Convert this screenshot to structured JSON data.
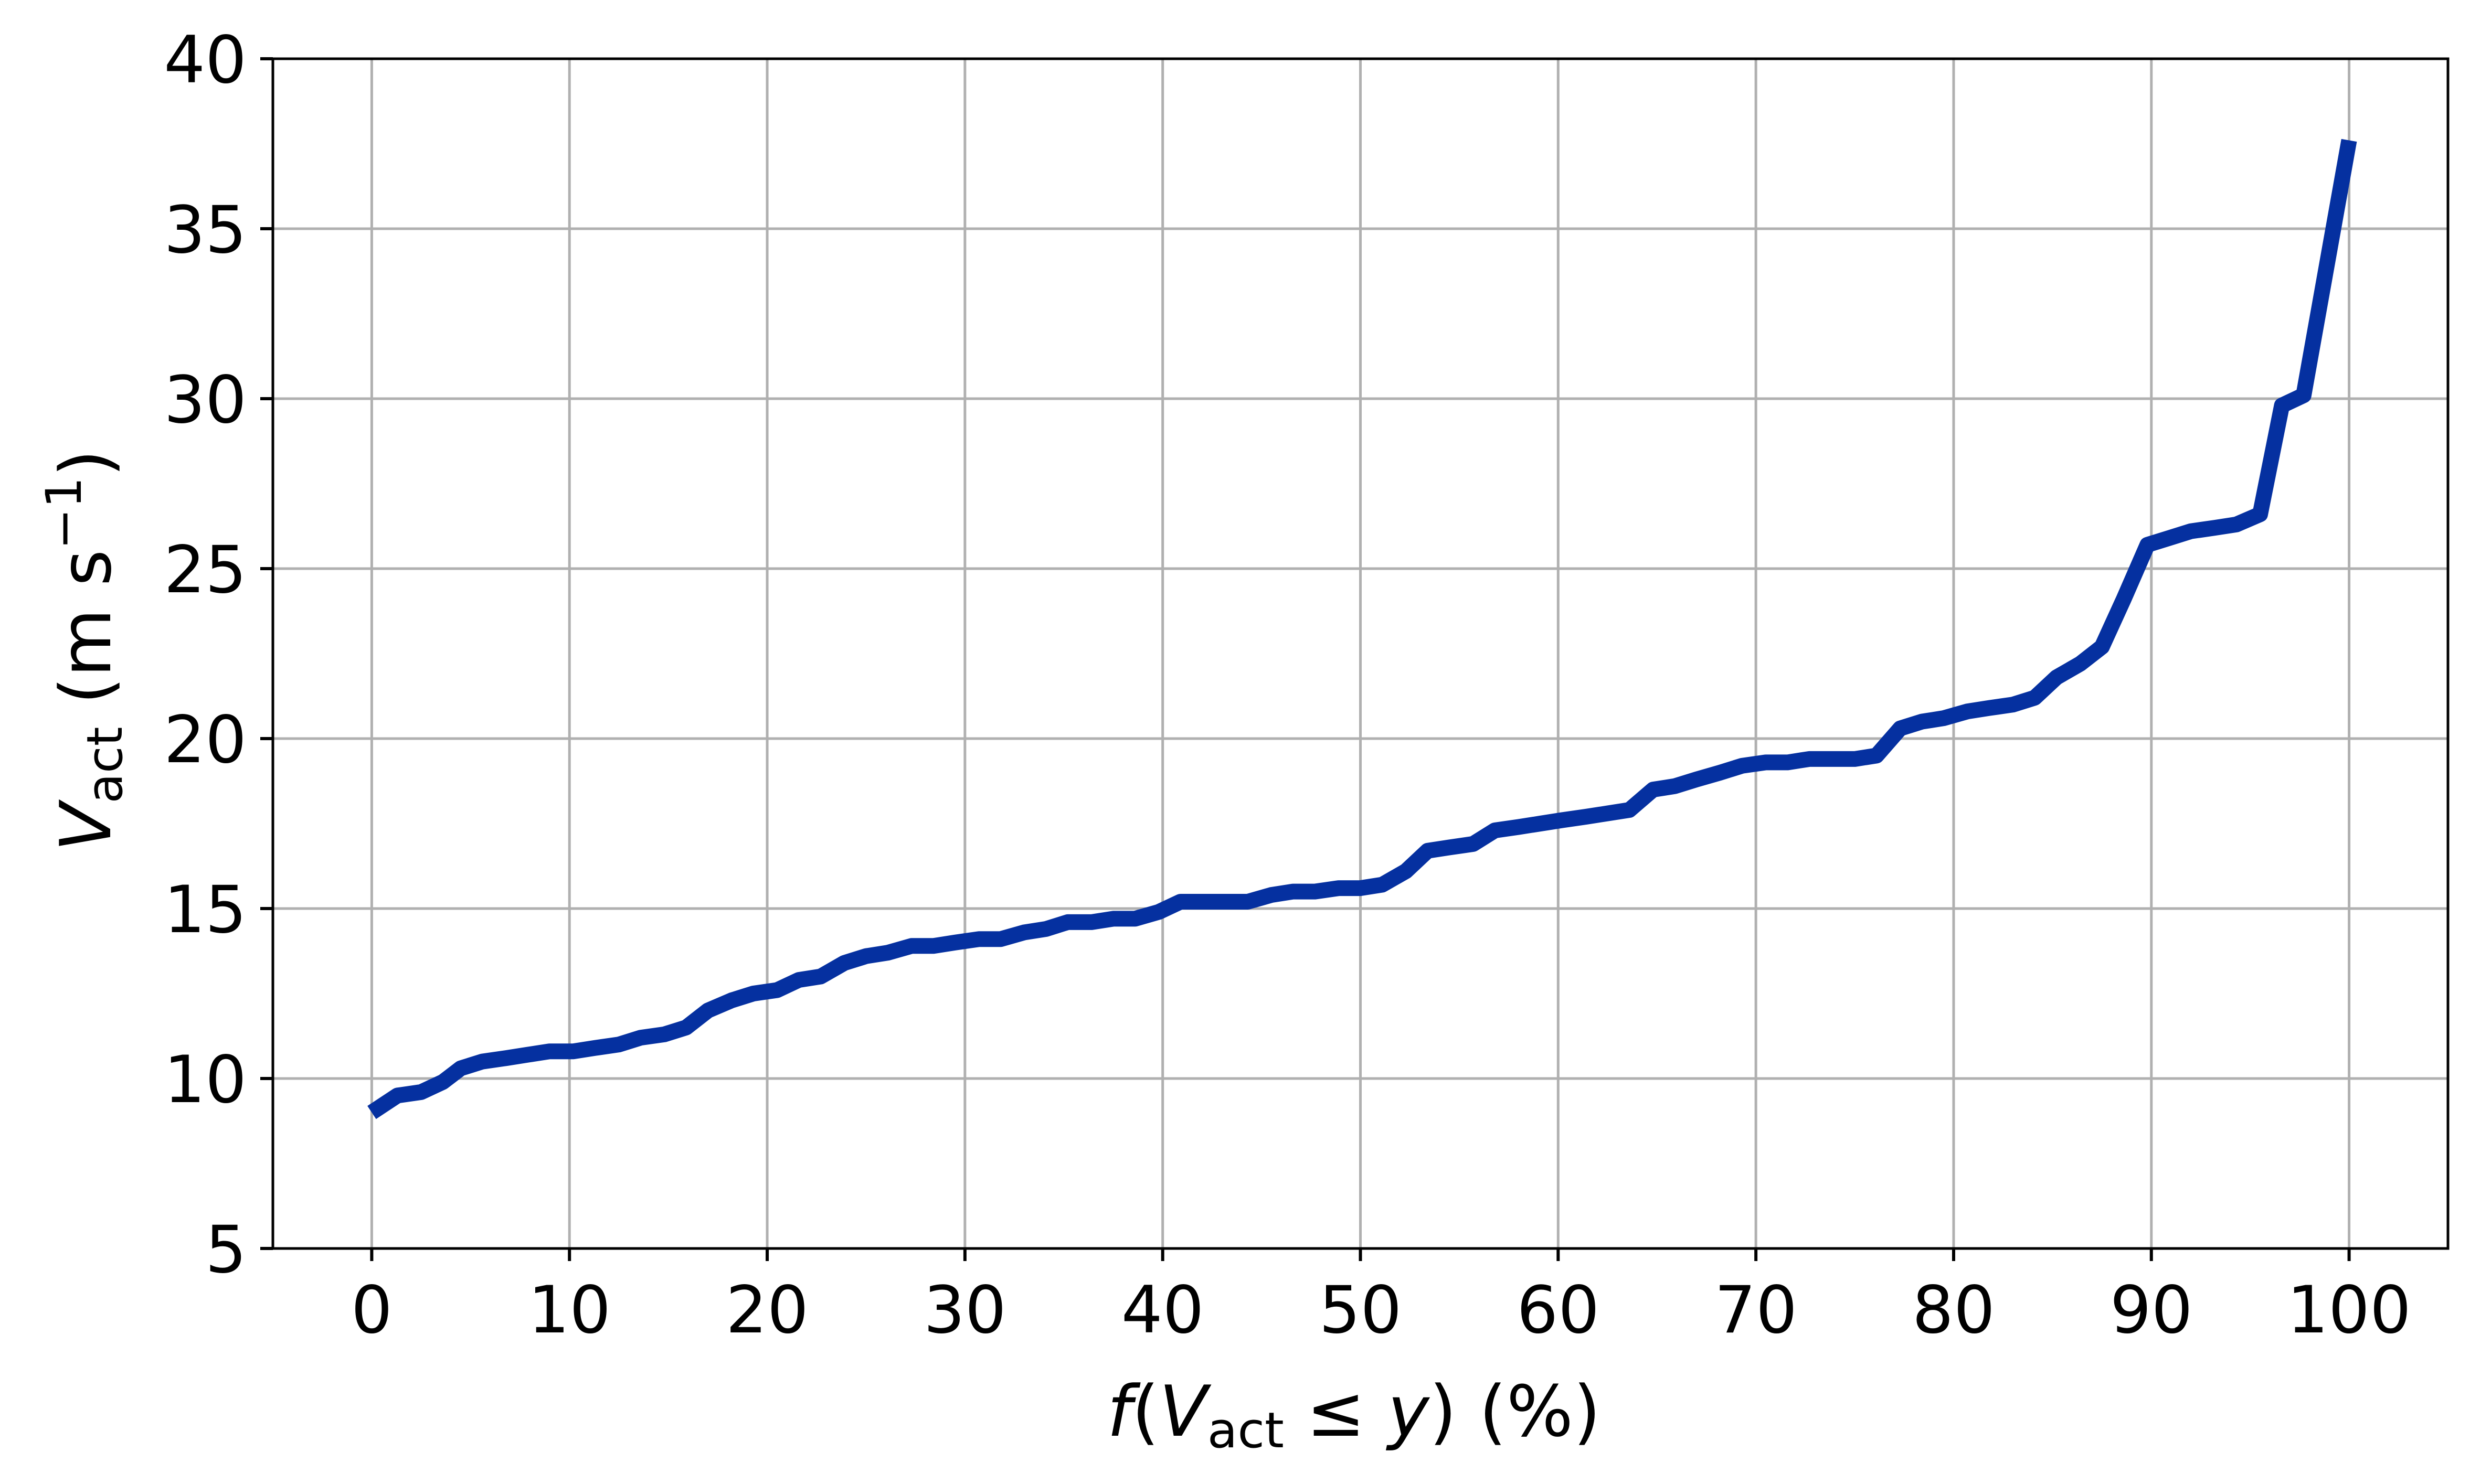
{
  "chart_data": {
    "type": "line",
    "title": "",
    "xlabel": {
      "parts": [
        "f",
        "(",
        "V",
        "act",
        " ≤ ",
        "y",
        ") (%)"
      ]
    },
    "ylabel": {
      "parts": [
        "V",
        "act",
        " (m s",
        "−1",
        ")"
      ]
    },
    "xlim": [
      -5,
      105
    ],
    "ylim": [
      5,
      40
    ],
    "xticks": [
      0,
      10,
      20,
      30,
      40,
      50,
      60,
      70,
      80,
      90,
      100
    ],
    "xtick_labels": [
      "0",
      "10",
      "20",
      "30",
      "40",
      "50",
      "60",
      "70",
      "80",
      "90",
      "100"
    ],
    "yticks": [
      5,
      10,
      15,
      20,
      25,
      30,
      35,
      40
    ],
    "ytick_labels": [
      "5",
      "10",
      "15",
      "20",
      "25",
      "30",
      "35",
      "40"
    ],
    "grid": true,
    "colors": {
      "line": "#0530a0",
      "grid": "#b0b0b0",
      "axes": "#000000"
    },
    "series": [
      {
        "x": [
          0,
          1.3,
          2.5,
          3.6,
          4.5,
          5.6,
          6.8,
          7.9,
          9.0,
          10.2,
          11.3,
          12.5,
          13.6,
          14.8,
          15.9,
          17.0,
          18.2,
          19.3,
          20.5,
          21.6,
          22.7,
          23.9,
          25.0,
          26.1,
          27.3,
          28.4,
          29.5,
          30.7,
          31.8,
          33.0,
          34.1,
          35.2,
          36.4,
          37.5,
          38.6,
          39.8,
          40.9,
          42.0,
          43.2,
          44.3,
          45.5,
          46.6,
          47.7,
          48.9,
          50.0,
          51.1,
          52.3,
          53.4,
          54.5,
          55.7,
          56.8,
          58.0,
          59.1,
          60.2,
          61.4,
          62.5,
          63.6,
          64.8,
          65.9,
          67.0,
          68.2,
          69.3,
          70.5,
          71.6,
          72.7,
          73.9,
          75.0,
          76.1,
          77.3,
          78.4,
          79.5,
          80.7,
          81.8,
          83.0,
          84.1,
          85.2,
          86.4,
          87.5,
          88.6,
          89.8,
          90.9,
          92.0,
          93.2,
          94.3,
          95.5,
          96.6,
          97.7,
          100
        ],
        "y": [
          9.0,
          9.5,
          9.6,
          9.9,
          10.3,
          10.5,
          10.6,
          10.7,
          10.8,
          10.8,
          10.9,
          11.0,
          11.2,
          11.3,
          11.5,
          12.0,
          12.3,
          12.5,
          12.6,
          12.9,
          13.0,
          13.4,
          13.6,
          13.7,
          13.9,
          13.9,
          14.0,
          14.1,
          14.1,
          14.3,
          14.4,
          14.6,
          14.6,
          14.7,
          14.7,
          14.9,
          15.2,
          15.2,
          15.2,
          15.2,
          15.4,
          15.5,
          15.5,
          15.6,
          15.6,
          15.7,
          16.1,
          16.7,
          16.8,
          16.9,
          17.3,
          17.4,
          17.5,
          17.6,
          17.7,
          17.8,
          17.9,
          18.5,
          18.6,
          18.8,
          19.0,
          19.2,
          19.3,
          19.3,
          19.4,
          19.4,
          19.4,
          19.5,
          20.3,
          20.5,
          20.6,
          20.8,
          20.9,
          21.0,
          21.2,
          21.8,
          22.2,
          22.7,
          24.1,
          25.7,
          25.9,
          26.1,
          26.2,
          26.3,
          26.6,
          29.8,
          30.1,
          37.6
        ]
      }
    ]
  }
}
